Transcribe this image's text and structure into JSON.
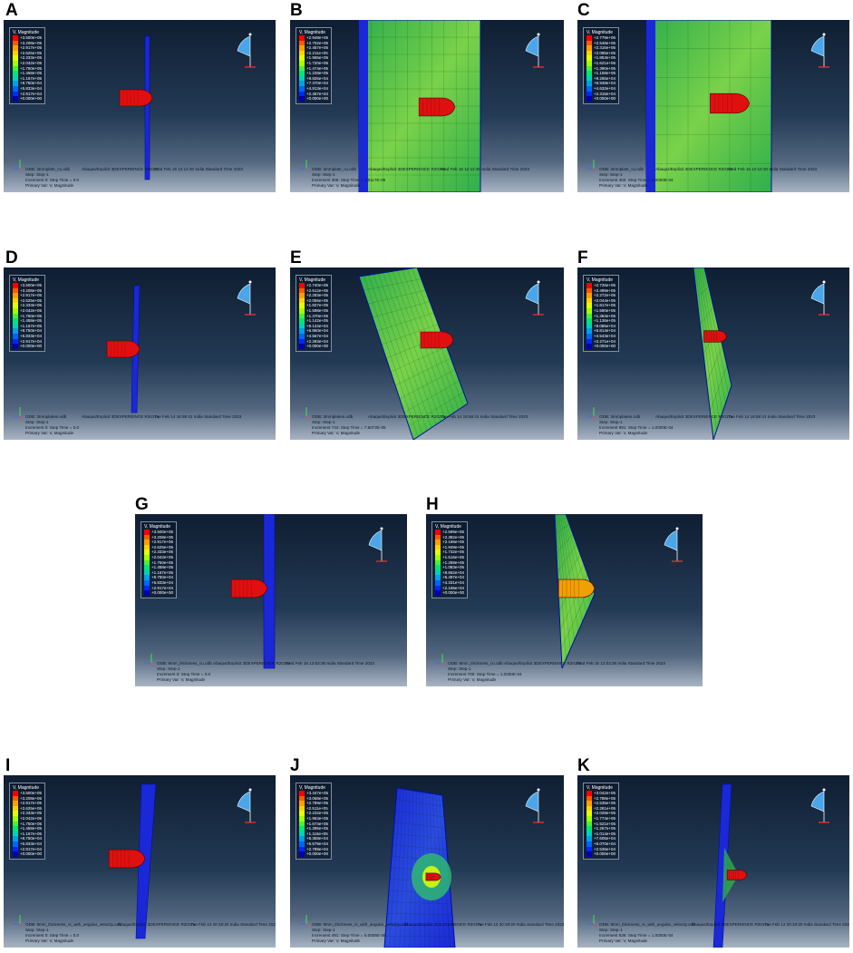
{
  "panels": [
    {
      "letter": "A",
      "legend": [
        "+3.500e+05",
        "+3.208e+05",
        "+2.917e+05",
        "+2.625e+05",
        "+2.333e+05",
        "+2.042e+05",
        "+1.750e+05",
        "+1.458e+05",
        "+1.167e+05",
        "+8.750e+04",
        "+5.833e+04",
        "+2.917e+04",
        "+0.000e+00"
      ],
      "odb": "ODB: 3mmplate_cu.odb",
      "abaqus": "Abaqus/Explicit 3DEXPERIENCE R2017x",
      "date": "Wed Feb 15 12:14:30 India Standard Time 2023",
      "step": "Step: Step-1",
      "increment": "Increment      0: Step Time =   0.0",
      "primary": "Primary Var: V, Magnitude"
    },
    {
      "letter": "B",
      "legend": [
        "+2.948e+05",
        "+2.702e+05",
        "+2.457e+05",
        "+2.211e+05",
        "+1.965e+05",
        "+1.720e+05",
        "+1.474e+05",
        "+1.228e+05",
        "+9.826e+04",
        "+7.370e+04",
        "+4.913e+04",
        "+2.457e+04",
        "+0.000e+00"
      ],
      "odb": "ODB: 3mmplate_cu.odb",
      "abaqus": "Abaqus/Explicit 3DEXPERIENCE R2017x",
      "date": "Wed Feb 15 12:14:30 India Standard Time 2023",
      "step": "Step: Step-1",
      "increment": "Increment    306: Step Time =   7.5117E-05",
      "primary": "Primary Var: V, Magnitude"
    },
    {
      "letter": "C",
      "legend": [
        "+2.779e+05",
        "+2.548e+05",
        "+2.316e+05",
        "+2.085e+05",
        "+1.853e+05",
        "+1.621e+05",
        "+1.390e+05",
        "+1.158e+05",
        "+9.265e+04",
        "+6.948e+04",
        "+4.632e+04",
        "+2.316e+04",
        "+0.000e+00"
      ],
      "odb": "ODB: 3mmplate_cu.odb",
      "abaqus": "Abaqus/Explicit 3DEXPERIENCE R2017x",
      "date": "Wed Feb 15 12:14:30 India Standard Time 2023",
      "step": "Step: Step-1",
      "increment": "Increment    402: Step Time =   1.0000E-04",
      "primary": "Primary Var: V, Magnitude"
    },
    {
      "letter": "D",
      "legend": [
        "+3.500e+05",
        "+3.208e+05",
        "+2.917e+05",
        "+2.625e+05",
        "+2.333e+05",
        "+2.042e+05",
        "+1.750e+05",
        "+1.458e+05",
        "+1.167e+05",
        "+8.750e+04",
        "+5.833e+04",
        "+2.917e+04",
        "+0.000e+00"
      ],
      "odb": "ODB: 3mmplateni.odb",
      "abaqus": "Abaqus/Explicit 3DEXPERIENCE R2017x",
      "date": "Tue Feb 14 16:58:41 India Standard Time 2023",
      "step": "Step: Step-1",
      "increment": "Increment      0: Step Time =   0.0",
      "primary": "Primary Var: V, Magnitude"
    },
    {
      "letter": "E",
      "legend": [
        "+2.740e+05",
        "+2.512e+05",
        "+2.283e+05",
        "+2.055e+05",
        "+1.827e+05",
        "+1.598e+05",
        "+1.370e+05",
        "+1.142e+05",
        "+9.134e+04",
        "+6.850e+04",
        "+4.567e+04",
        "+2.283e+04",
        "+0.000e+00"
      ],
      "odb": "ODB: 3mmplateni.odb",
      "abaqus": "Abaqus/Explicit 3DEXPERIENCE R2017x",
      "date": "Tue Feb 14 16:58:41 India Standard Time 2023",
      "step": "Step: Step-1",
      "increment": "Increment    744: Step Time =   7.5072E-05",
      "primary": "Primary Var: V, Magnitude"
    },
    {
      "letter": "F",
      "legend": [
        "+2.726e+05",
        "+2.499e+05",
        "+2.272e+05",
        "+2.044e+05",
        "+1.817e+05",
        "+1.590e+05",
        "+1.363e+05",
        "+1.136e+05",
        "+9.086e+04",
        "+6.814e+04",
        "+4.543e+04",
        "+2.271e+04",
        "+0.000e+00"
      ],
      "odb": "ODB: 3mmplateni.odb",
      "abaqus": "Abaqus/Explicit 3DEXPERIENCE R2017x",
      "date": "Tue Feb 14 16:58:41 India Standard Time 2023",
      "step": "Step: Step-1",
      "increment": "Increment    991: Step Time =   1.0000E-04",
      "primary": "Primary Var: V, Magnitude"
    },
    {
      "letter": "G",
      "legend": [
        "+3.500e+05",
        "+3.208e+05",
        "+2.917e+05",
        "+2.625e+05",
        "+2.333e+05",
        "+2.042e+05",
        "+1.750e+05",
        "+1.458e+05",
        "+1.167e+05",
        "+8.750e+04",
        "+5.833e+04",
        "+2.917e+04",
        "+0.000e+00"
      ],
      "odb": "ODB: 9mm_thickness_cu.odb",
      "abaqus": "Abaqus/Explicit 3DEXPERIENCE R2017x",
      "date": "Wed Feb 15 12:03:36 India Standard Time 2023",
      "step": "Step: Step-1",
      "increment": "Increment      0: Step Time =   0.0",
      "primary": "Primary Var: V, Magnitude"
    },
    {
      "letter": "H",
      "legend": [
        "+2.599e+05",
        "+2.382e+05",
        "+2.166e+05",
        "+1.949e+05",
        "+1.732e+05",
        "+1.516e+05",
        "+1.299e+05",
        "+1.083e+05",
        "+8.662e+04",
        "+6.497e+04",
        "+4.331e+04",
        "+2.166e+04",
        "+0.000e+00"
      ],
      "odb": "ODB: 9mm_thickness_cu.odb",
      "abaqus": "Abaqus/Explicit 3DEXPERIENCE R2017x",
      "date": "Wed Feb 15 12:03:36 India Standard Time 2023",
      "step": "Step: Step-1",
      "increment": "Increment    700: Step Time =   1.0000E-04",
      "primary": "Primary Var: V, Magnitude"
    },
    {
      "letter": "I",
      "legend": [
        "+3.500e+05",
        "+3.208e+05",
        "+2.917e+05",
        "+2.625e+05",
        "+2.333e+05",
        "+2.042e+05",
        "+1.750e+05",
        "+1.458e+05",
        "+1.167e+05",
        "+8.750e+04",
        "+5.833e+04",
        "+2.917e+04",
        "+0.000e+00"
      ],
      "odb": "ODB: 9mm_thickness_ni_with_angular_velocity.odb",
      "abaqus": "Abaqus/Explicit 3DEXPERIENCE R2017x",
      "date": "Tue Feb 14 20:19:20 India Standard Time 2023",
      "step": "Step: Step-1",
      "increment": "Increment      0: Step Time =   0.0",
      "primary": "Primary Var: V, Magnitude"
    },
    {
      "letter": "J",
      "legend": [
        "+3.347e+05",
        "+3.068e+05",
        "+2.789e+05",
        "+2.511e+05",
        "+2.232e+05",
        "+1.953e+05",
        "+1.674e+05",
        "+1.395e+05",
        "+1.116e+05",
        "+8.368e+04",
        "+5.579e+04",
        "+2.789e+04",
        "+0.000e+00"
      ],
      "odb": "ODB: 9mm_thickness_ni_with_angular_velocity.odb",
      "abaqus": "Abaqus/Explicit 3DEXPERIENCE R2017x",
      "date": "Tue Feb 14 20:19:20 India Standard Time 2023",
      "step": "Step: Step-1",
      "increment": "Increment    491: Step Time =   5.0006E-05",
      "primary": "Primary Var: V, Magnitude"
    },
    {
      "letter": "K",
      "legend": [
        "+3.042e+05",
        "+2.788e+05",
        "+2.535e+05",
        "+2.281e+05",
        "+2.028e+05",
        "+1.774e+05",
        "+1.521e+05",
        "+1.267e+05",
        "+1.014e+05",
        "+7.605e+04",
        "+5.070e+04",
        "+2.535e+04",
        "+0.000e+00"
      ],
      "odb": "ODB: 9mm_thickness_ni_with_angular_velocity.odb",
      "abaqus": "Abaqus/Explicit 3DEXPERIENCE R2017x",
      "date": "Tue Feb 14 20:19:20 India Standard Time 2023",
      "step": "Step: Step-1",
      "increment": "Increment    938: Step Time =   1.0000E-04",
      "primary": "Primary Var: V, Magnitude"
    }
  ],
  "legend_title": "V, Magnitude",
  "legend_colors": [
    "#ff0000",
    "#ff5a00",
    "#ffa000",
    "#ffd200",
    "#e4ff00",
    "#a0ff00",
    "#46f03c",
    "#00e678",
    "#00d2b4",
    "#00a0e6",
    "#0064ff",
    "#0028ff",
    "#0000b4"
  ]
}
